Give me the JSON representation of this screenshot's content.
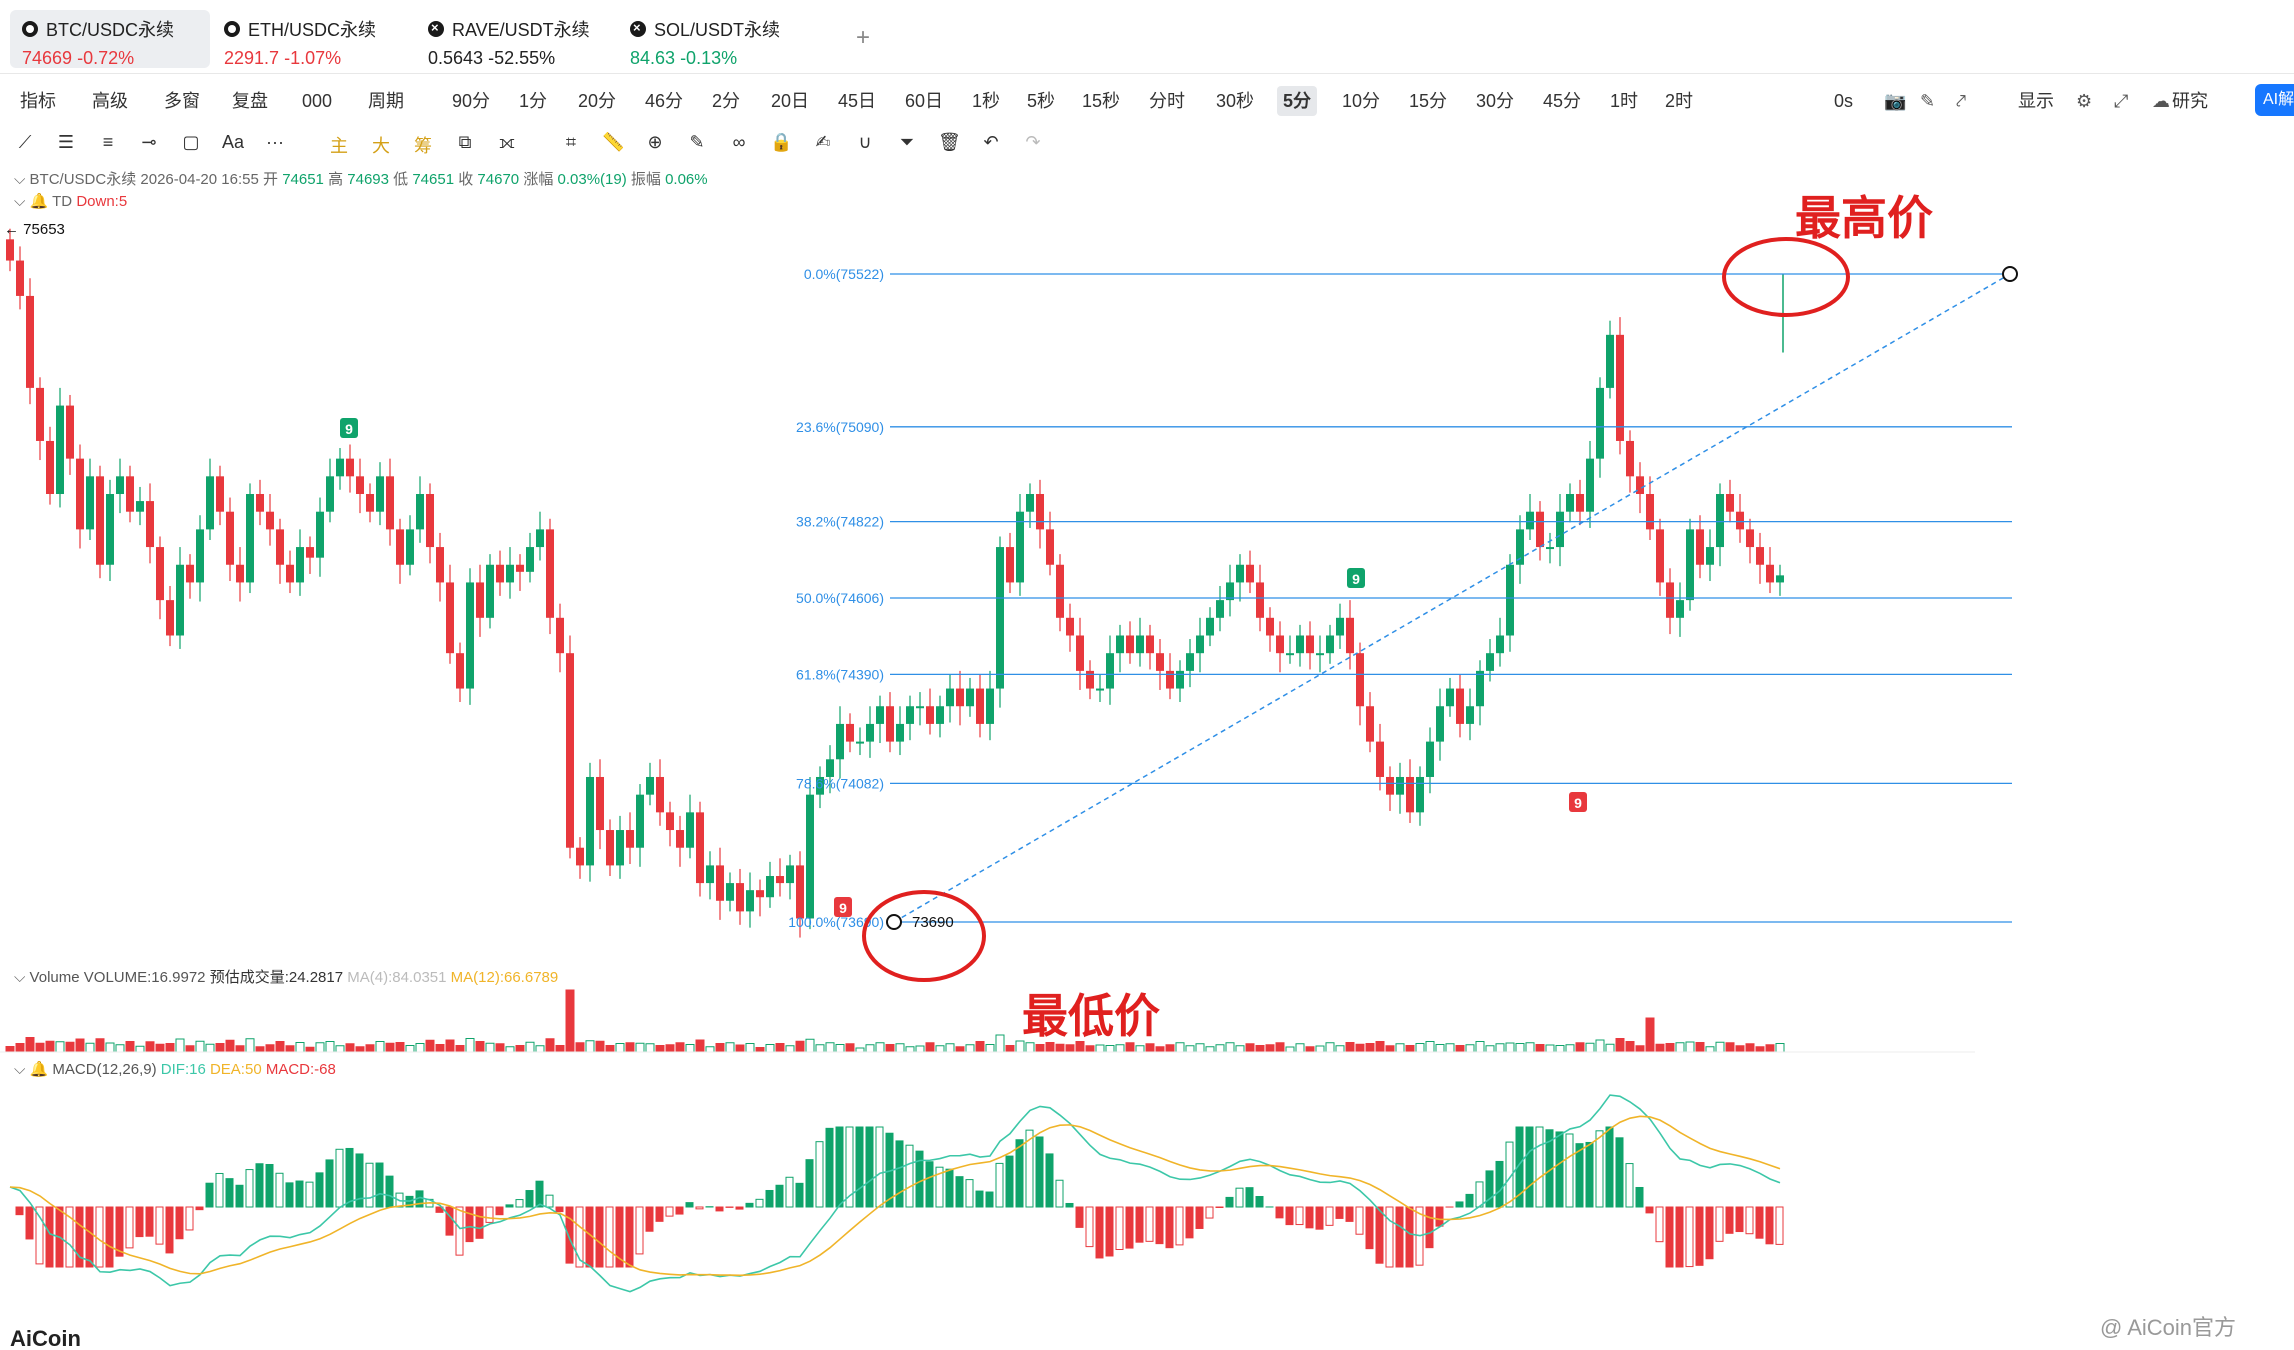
{
  "tickers": [
    {
      "symbol": "BTC/USDC永续",
      "price": "74669",
      "change": "-0.72%",
      "price_color": "red",
      "change_color": "red",
      "icon": "btc-icon"
    },
    {
      "symbol": "ETH/USDC永续",
      "price": "2291.7",
      "change": "-1.07%",
      "price_color": "red",
      "change_color": "red",
      "icon": "eth-icon"
    },
    {
      "symbol": "RAVE/USDT永续",
      "price": "0.5643",
      "change": "-52.55%",
      "price_color": "dark",
      "change_color": "dark",
      "icon": "rave-icon"
    },
    {
      "symbol": "SOL/USDT永续",
      "price": "84.63",
      "change": "-0.13%",
      "price_color": "green",
      "change_color": "green",
      "icon": "sol-icon"
    }
  ],
  "add_tab": "+",
  "toolbar": {
    "left": [
      "指标",
      "高级",
      "多窗",
      "复盘",
      "000",
      "周期"
    ],
    "intervals": [
      "90分",
      "1分",
      "20分",
      "46分",
      "2分",
      "20日",
      "45日",
      "60日",
      "1秒",
      "5秒",
      "15秒",
      "分时",
      "30秒",
      "5分",
      "10分",
      "15分",
      "30分",
      "45分",
      "1时",
      "2时"
    ],
    "selected_interval": "5分",
    "right": [
      "0s",
      "显示",
      "研究"
    ],
    "ai": "AI解"
  },
  "drawbar": {
    "main": "主",
    "big": "大",
    "chip": "筹",
    "more": "···",
    "text_tool": "Aa"
  },
  "chart_info": {
    "symbol": "BTC/USDC永续",
    "datetime": "2026-04-20 16:55",
    "open_label": "开",
    "open": "74651",
    "high_label": "高",
    "high": "74693",
    "low_label": "低",
    "low": "74651",
    "close_label": "收",
    "close": "74670",
    "change_label": "涨幅",
    "change": "0.03%(19)",
    "amp_label": "振幅",
    "amp": "0.06%",
    "td_label": "TD",
    "td_value": "Down:5",
    "prev_high": "← 75653"
  },
  "fib_levels": [
    {
      "label": "0.0%(75522)",
      "price": 75522
    },
    {
      "label": "23.6%(75090)",
      "price": 75090
    },
    {
      "label": "38.2%(74822)",
      "price": 74822
    },
    {
      "label": "50.0%(74606)",
      "price": 74606
    },
    {
      "label": "61.8%(74390)",
      "price": 74390
    },
    {
      "label": "78.6%(74082)",
      "price": 74082
    },
    {
      "label": "100.0%(73690)",
      "price": 73690
    }
  ],
  "low_marker": "73690",
  "td_markers": [
    "9",
    "9",
    "9",
    "9"
  ],
  "annotations": {
    "high": "最高价",
    "low": "最低价"
  },
  "volume_info": {
    "label": "Volume",
    "volume": "VOLUME:16.9972",
    "est": "预估成交量:24.2817",
    "ma4": "MA(4):84.0351",
    "ma12": "MA(12):66.6789"
  },
  "macd_info": {
    "label": "MACD(12,26,9)",
    "dif": "DIF:16",
    "dea": "DEA:50",
    "macd": "MACD:-68"
  },
  "logo": "AiCoin",
  "watermark": "@ AiCoin官方",
  "colors": {
    "up": "#0fa36b",
    "down": "#e8383d",
    "fib": "#2f8fe6",
    "accent": "#1677ff",
    "annot": "#e0201f",
    "dif": "#3cc7a8",
    "dea": "#f0b429"
  },
  "chart_data": {
    "type": "candlestick",
    "interval": "5分",
    "ylim": [
      73600,
      75700
    ],
    "closes": [
      75560,
      75460,
      75200,
      75050,
      74900,
      75150,
      75000,
      74800,
      74950,
      74700,
      74900,
      74950,
      74850,
      74880,
      74750,
      74600,
      74500,
      74700,
      74650,
      74800,
      74950,
      74850,
      74700,
      74650,
      74900,
      74850,
      74800,
      74700,
      74650,
      74750,
      74720,
      74850,
      74950,
      75000,
      74950,
      74900,
      74850,
      74950,
      74800,
      74700,
      74800,
      74900,
      74750,
      74650,
      74450,
      74350,
      74650,
      74550,
      74700,
      74650,
      74700,
      74680,
      74750,
      74800,
      74550,
      74450,
      73900,
      73850,
      74100,
      73950,
      73850,
      73950,
      73900,
      74050,
      74100,
      74000,
      73950,
      73900,
      74000,
      73800,
      73850,
      73750,
      73800,
      73720,
      73780,
      73760,
      73820,
      73800,
      73850,
      73700,
      74050,
      74100,
      74150,
      74250,
      74200,
      74200,
      74250,
      74300,
      74200,
      74250,
      74300,
      74300,
      74250,
      74300,
      74350,
      74300,
      74350,
      74250,
      74350,
      74750,
      74650,
      74850,
      74900,
      74800,
      74700,
      74550,
      74500,
      74400,
      74350,
      74350,
      74450,
      74500,
      74450,
      74500,
      74450,
      74400,
      74350,
      74400,
      74450,
      74500,
      74550,
      74600,
      74650,
      74700,
      74650,
      74550,
      74500,
      74450,
      74450,
      74500,
      74450,
      74450,
      74500,
      74550,
      74450,
      74300,
      74200,
      74100,
      74050,
      74100,
      74000,
      74100,
      74200,
      74300,
      74350,
      74250,
      74300,
      74400,
      74450,
      74500,
      74700,
      74800,
      74850,
      74750,
      74750,
      74850,
      74900,
      74850,
      75000,
      75200,
      75350,
      75050,
      74950,
      74900,
      74800,
      74650,
      74550,
      74600,
      74800,
      74700,
      74750,
      74900,
      74850,
      74800,
      74750,
      74700,
      74650,
      74670
    ]
  }
}
